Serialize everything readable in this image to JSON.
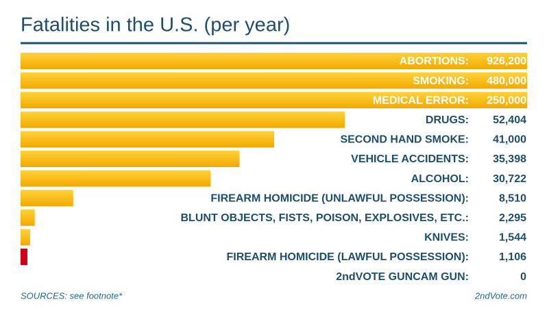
{
  "chart_data": {
    "type": "bar",
    "orientation": "horizontal",
    "title": "Fatalities in the U.S. (per year)",
    "categories": [
      "ABORTIONS:",
      "SMOKING:",
      "MEDICAL ERROR:",
      "DRUGS:",
      "SECOND HAND SMOKE:",
      "VEHICLE ACCIDENTS:",
      "ALCOHOL:",
      "FIREARM HOMICIDE (UNLAWFUL POSSESSION):",
      "BLUNT OBJECTS, FISTS, POISON, EXPLOSIVES, ETC.:",
      "KNIVES:",
      "FIREARM HOMICIDE (LAWFUL POSSESSION):",
      "2ndVOTE GUNCAM GUN:"
    ],
    "values": [
      926200,
      480000,
      250000,
      52404,
      41000,
      35398,
      30722,
      8510,
      2295,
      1544,
      1106,
      0
    ],
    "value_labels": [
      "926,200",
      "480,000",
      "250,000",
      "52,404",
      "41,000",
      "35,398",
      "30,722",
      "8,510",
      "2,295",
      "1,544",
      "1,106",
      "0"
    ],
    "colors": [
      "#f7b500",
      "#f7b500",
      "#f7b500",
      "#f7b500",
      "#f7b500",
      "#f7b500",
      "#f7b500",
      "#f7b500",
      "#f7b500",
      "#f7b500",
      "#d0021b",
      "#f7b500"
    ],
    "source": "SOURCES: see footnote*",
    "credit": "2ndVote.com"
  }
}
